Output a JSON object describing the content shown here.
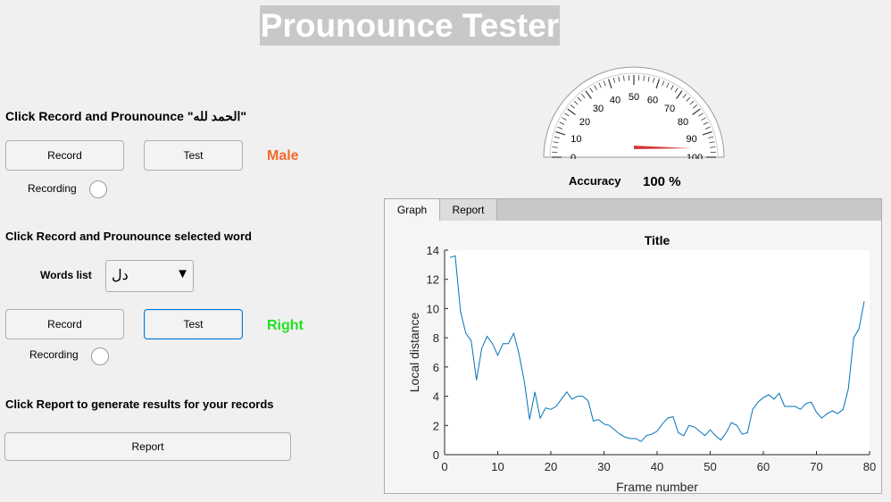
{
  "app_title": "Prounounce Tester",
  "section1": {
    "instruction": "Click Record and Prounounce \"الحمد لله\"",
    "record_label": "Record",
    "test_label": "Test",
    "result": "Male",
    "result_color": "#f26b2a",
    "recording_label": "Recording"
  },
  "section2": {
    "instruction": "Click Record and Prounounce selected word",
    "words_list_label": "Words list",
    "selected_word": "دل",
    "record_label": "Record",
    "test_label": "Test",
    "result": "Right",
    "result_color": "#22e022",
    "recording_label": "Recording"
  },
  "section3": {
    "instruction": "Click Report to generate results for your records",
    "report_label": "Report"
  },
  "gauge": {
    "ticks": [
      "0",
      "10",
      "20",
      "30",
      "40",
      "50",
      "60",
      "70",
      "80",
      "90",
      "100"
    ],
    "min": 0,
    "max": 100,
    "value": 100,
    "accuracy_label": "Accuracy",
    "accuracy_value": "100 %"
  },
  "tabs": [
    {
      "label": "Graph",
      "active": true
    },
    {
      "label": "Report",
      "active": false
    }
  ],
  "chart_data": {
    "type": "line",
    "title": "Title",
    "xlabel": "Frame number",
    "ylabel": "Local distance",
    "xlim": [
      0,
      80
    ],
    "ylim": [
      0,
      14
    ],
    "xticks": [
      0,
      10,
      20,
      30,
      40,
      50,
      60,
      70,
      80
    ],
    "yticks": [
      0,
      2,
      4,
      6,
      8,
      10,
      12,
      14
    ],
    "grid": false,
    "line_color": "#0072bd",
    "x": [
      1,
      2,
      3,
      4,
      5,
      6,
      7,
      8,
      9,
      10,
      11,
      12,
      13,
      14,
      15,
      16,
      17,
      18,
      19,
      20,
      21,
      22,
      23,
      24,
      25,
      26,
      27,
      28,
      29,
      30,
      31,
      32,
      33,
      34,
      35,
      36,
      37,
      38,
      39,
      40,
      41,
      42,
      43,
      44,
      45,
      46,
      47,
      48,
      49,
      50,
      51,
      52,
      53,
      54,
      55,
      56,
      57,
      58,
      59,
      60,
      61,
      62,
      63,
      64,
      65,
      66,
      67,
      68,
      69,
      70,
      71,
      72,
      73,
      74,
      75,
      76,
      77,
      78,
      79
    ],
    "y": [
      13.5,
      13.6,
      9.8,
      8.3,
      7.8,
      5.1,
      7.3,
      8.1,
      7.6,
      6.8,
      7.6,
      7.6,
      8.3,
      6.9,
      5.0,
      2.4,
      4.3,
      2.5,
      3.2,
      3.1,
      3.3,
      3.8,
      4.3,
      3.8,
      4.0,
      4.0,
      3.7,
      2.3,
      2.4,
      2.1,
      2.0,
      1.7,
      1.4,
      1.2,
      1.1,
      1.1,
      0.9,
      1.3,
      1.4,
      1.6,
      2.1,
      2.5,
      2.6,
      1.5,
      1.3,
      2.0,
      1.9,
      1.6,
      1.3,
      1.7,
      1.3,
      1.0,
      1.5,
      2.2,
      2.0,
      1.4,
      1.5,
      3.1,
      3.6,
      3.9,
      4.1,
      3.8,
      4.2,
      3.3,
      3.3,
      3.3,
      3.1,
      3.5,
      3.6,
      2.9,
      2.5,
      2.8,
      3.0,
      2.8,
      3.1,
      4.5,
      8.0,
      8.6,
      10.5
    ]
  }
}
